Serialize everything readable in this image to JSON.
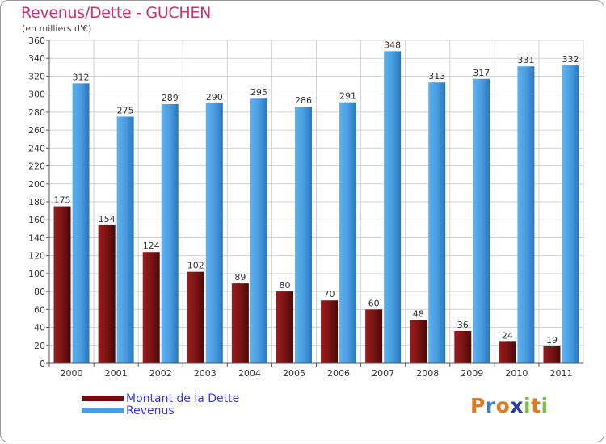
{
  "title": "Revenus/Dette - GUCHEN",
  "subtitle": "(en milliers d'€)",
  "chart_data": {
    "type": "bar",
    "categories": [
      "2000",
      "2001",
      "2002",
      "2003",
      "2004",
      "2005",
      "2006",
      "2007",
      "2008",
      "2009",
      "2010",
      "2011"
    ],
    "series": [
      {
        "name": "Montant de la Dette",
        "color": "#6b0f0f",
        "values": [
          175,
          154,
          124,
          102,
          89,
          80,
          70,
          60,
          48,
          36,
          24,
          19
        ]
      },
      {
        "name": "Revenus",
        "color": "#4a9de0",
        "values": [
          312,
          275,
          289,
          290,
          295,
          286,
          291,
          348,
          313,
          317,
          331,
          332
        ]
      }
    ],
    "ylim": [
      0,
      360
    ],
    "yticks": [
      0,
      20,
      40,
      60,
      80,
      100,
      120,
      140,
      160,
      180,
      200,
      220,
      240,
      260,
      280,
      300,
      320,
      340,
      360
    ],
    "grid": true,
    "legend_position": "bottom-left"
  },
  "legend": {
    "debt_label": "Montant de la Dette",
    "revenue_label": "Revenus",
    "debt_color": "#6b0f0f",
    "revenue_color": "#4a9de0"
  },
  "logo": {
    "letters": [
      "P",
      "r",
      "o",
      "x",
      "i",
      "t",
      "i"
    ],
    "colors": [
      "#e07a1f",
      "#3c7fd1",
      "#e07a1f",
      "#2b3aa8",
      "#7bc043",
      "#e07a1f",
      "#7bc043"
    ]
  }
}
